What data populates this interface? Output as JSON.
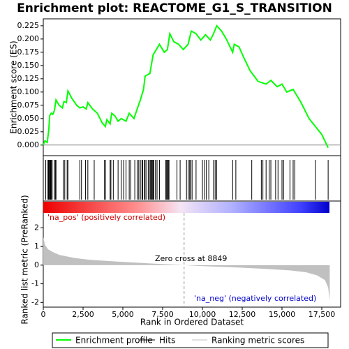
{
  "chart_data": [
    {
      "type": "line",
      "title": "Enrichment plot: REACTOME_G1_S_TRANSITION",
      "y_label": "Enrichment score (ES)",
      "xlim": [
        0,
        18684
      ],
      "ylim": [
        -0.02,
        0.238
      ],
      "yticks": [
        {
          "value": 0,
          "label": "0.000"
        },
        {
          "value": 0.025,
          "label": "0.025"
        },
        {
          "value": 0.05,
          "label": "0.050"
        },
        {
          "value": 0.075,
          "label": "0.075"
        },
        {
          "value": 0.1,
          "label": "0.100"
        },
        {
          "value": 0.125,
          "label": "0.125"
        },
        {
          "value": 0.15,
          "label": "0.150"
        },
        {
          "value": 0.175,
          "label": "0.175"
        },
        {
          "value": 0.2,
          "label": "0.200"
        },
        {
          "value": 0.225,
          "label": "0.225"
        }
      ],
      "x": [
        0,
        100,
        250,
        350,
        400,
        500,
        600,
        700,
        800,
        1000,
        1200,
        1300,
        1450,
        1550,
        1800,
        2100,
        2300,
        2500,
        2700,
        2800,
        3100,
        3400,
        3700,
        3900,
        4000,
        4200,
        4300,
        4500,
        4700,
        4900,
        5200,
        5400,
        5700,
        5900,
        6100,
        6300,
        6400,
        6700,
        6900,
        7100,
        7300,
        7600,
        7800,
        7950,
        8200,
        8500,
        8800,
        9100,
        9300,
        9600,
        9900,
        10200,
        10500,
        10700,
        10900,
        11200,
        11500,
        11900,
        12000,
        12300,
        12600,
        13000,
        13500,
        14000,
        14300,
        14700,
        15000,
        15300,
        15700,
        16200,
        16700,
        17100,
        17500,
        17900
      ],
      "series": [
        {
          "name": "Enrichment profile",
          "color": "#00ff00",
          "values": [
            0,
            0.008,
            0.005,
            0.03,
            0.055,
            0.06,
            0.058,
            0.065,
            0.085,
            0.075,
            0.07,
            0.082,
            0.08,
            0.102,
            0.088,
            0.075,
            0.07,
            0.072,
            0.068,
            0.08,
            0.068,
            0.06,
            0.042,
            0.035,
            0.048,
            0.04,
            0.06,
            0.055,
            0.045,
            0.05,
            0.045,
            0.06,
            0.05,
            0.068,
            0.085,
            0.105,
            0.13,
            0.135,
            0.17,
            0.18,
            0.19,
            0.175,
            0.18,
            0.21,
            0.195,
            0.19,
            0.18,
            0.19,
            0.215,
            0.21,
            0.198,
            0.208,
            0.198,
            0.21,
            0.225,
            0.215,
            0.2,
            0.175,
            0.19,
            0.185,
            0.165,
            0.14,
            0.12,
            0.115,
            0.122,
            0.11,
            0.115,
            0.1,
            0.105,
            0.08,
            0.05,
            0.035,
            0.02,
            -0.005
          ]
        }
      ],
      "hits": {
        "name": "Hits",
        "color": "#000000",
        "x": [
          150,
          250,
          330,
          380,
          420,
          460,
          500,
          560,
          700,
          760,
          800,
          1250,
          1350,
          1500,
          1550,
          2300,
          2400,
          2650,
          2800,
          3200,
          3850,
          3900,
          4200,
          4250,
          4400,
          4700,
          4900,
          5050,
          5200,
          5400,
          5500,
          5750,
          5900,
          6000,
          6100,
          6200,
          6250,
          6350,
          6400,
          6500,
          6600,
          6700,
          6750,
          6800,
          6850,
          6900,
          6950,
          7050,
          7150,
          7300,
          7700,
          7750,
          7800,
          7850,
          7900,
          8400,
          8600,
          9000,
          9100,
          9200,
          9250,
          9350,
          9600,
          10000,
          10150,
          10250,
          10400,
          10700,
          10800,
          10900,
          11900,
          12100,
          13100,
          13700,
          13800,
          14000,
          14200,
          14300,
          14600,
          14750,
          15000,
          15100,
          15500,
          15700,
          15800,
          17100,
          17900
        ]
      }
    },
    {
      "type": "area",
      "x_label": "Rank in Ordered Dataset",
      "y_label": "Ranked list metric (PreRanked)",
      "xlim": [
        0,
        18684
      ],
      "ylim": [
        -2.25,
        2.8
      ],
      "xticks": [
        0,
        {
          "value": 2500,
          "label": "2,500"
        },
        {
          "value": 5000,
          "label": "5,000"
        },
        {
          "value": 7500,
          "label": "7,500"
        },
        {
          "value": 10000,
          "label": "10,000"
        },
        {
          "value": 12500,
          "label": "12,500"
        },
        {
          "value": 15000,
          "label": "15,000"
        },
        {
          "value": 17500,
          "label": "17,500"
        }
      ],
      "yticks": [
        2,
        1,
        0,
        -1,
        -2
      ],
      "x": [
        0,
        100,
        300,
        600,
        1000,
        2000,
        3000,
        5000,
        7000,
        8849,
        10000,
        12000,
        14000,
        15500,
        16500,
        17200,
        17700,
        17900,
        18000
      ],
      "series": [
        {
          "name": "Ranking metric scores",
          "color": "#c0c0c0",
          "values": [
            1.5,
            1.1,
            0.85,
            0.7,
            0.55,
            0.38,
            0.28,
            0.17,
            0.08,
            0,
            -0.05,
            -0.12,
            -0.2,
            -0.28,
            -0.38,
            -0.55,
            -0.8,
            -1.2,
            -1.9
          ]
        }
      ],
      "zero_cross": 8849,
      "annotations": [
        "'na_pos' (positively correlated)",
        "Zero cross at 8849",
        "'na_neg' (negatively correlated)"
      ]
    }
  ]
}
